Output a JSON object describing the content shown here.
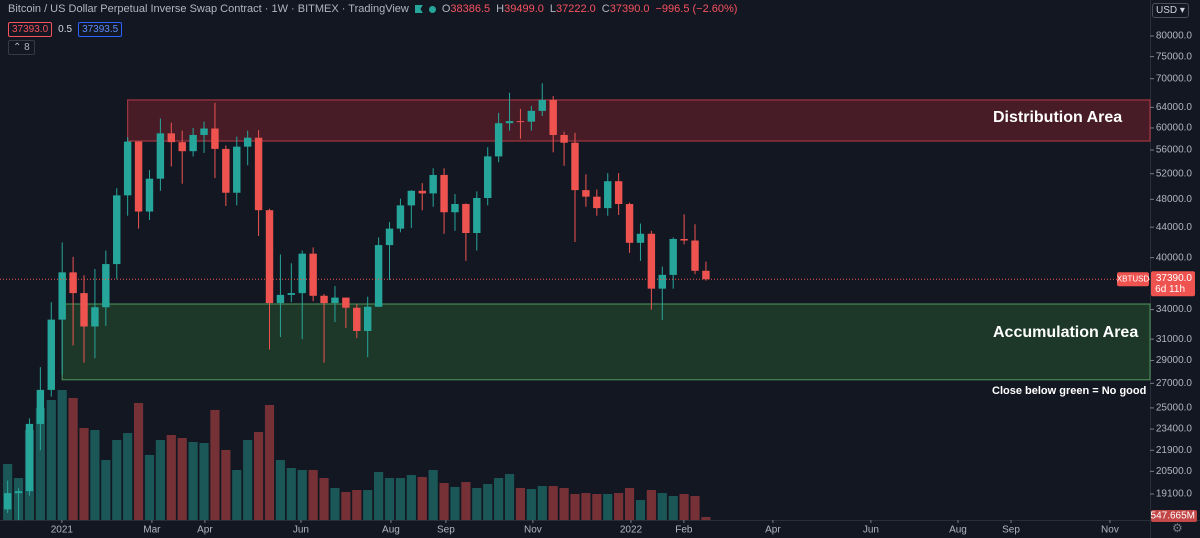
{
  "header": {
    "title": "Bitcoin / US Dollar Perpetual Inverse Swap Contract · 1W · BITMEX · TradingView",
    "ohlc": [
      {
        "key": "O",
        "value": "38386.5"
      },
      {
        "key": "H",
        "value": "39499.0"
      },
      {
        "key": "L",
        "value": "37222.0"
      },
      {
        "key": "C",
        "value": "37390.0"
      }
    ],
    "change": "−996.5 (−2.60%)",
    "sell": "37393.0",
    "spread": "0.5",
    "buy": "37393.5",
    "indicators": "8",
    "currency": "USD"
  },
  "chart_data": {
    "type": "candlestick",
    "categories": [
      null,
      null,
      null,
      null,
      null,
      null,
      null,
      null,
      null,
      null,
      null,
      null,
      null,
      null,
      null,
      null,
      null,
      null,
      null,
      null,
      null,
      null,
      null,
      null,
      null,
      null,
      null,
      null,
      null,
      null,
      null,
      null,
      null,
      null,
      null,
      null,
      null,
      null,
      null,
      null,
      null,
      null,
      null,
      null,
      null,
      null,
      null,
      null,
      null,
      null,
      null,
      null,
      null,
      null,
      null,
      null,
      null,
      null,
      null,
      null,
      null,
      null,
      null,
      null,
      null
    ],
    "open": [
      18200,
      19150,
      19270,
      23780,
      26450,
      32950,
      38200,
      35800,
      32250,
      34250,
      39200,
      48600,
      57500,
      46200,
      51200,
      59000,
      57400,
      55800,
      58700,
      59900,
      56200,
      49000,
      56600,
      58200,
      46400,
      34700,
      35600,
      35800,
      40500,
      35500,
      34700,
      35300,
      34200,
      31800,
      34300,
      41600,
      43800,
      47100,
      49300,
      48900,
      51800,
      46100,
      47300,
      43200,
      48200,
      54900,
      60900,
      61300,
      61200,
      63300,
      65500,
      58700,
      57300,
      49400,
      48400,
      46700,
      50800,
      47300,
      41900,
      43100,
      36300,
      37900,
      42400,
      42200,
      38386.5
    ],
    "high": [
      19920,
      19450,
      24200,
      28400,
      34800,
      41950,
      40100,
      37850,
      38600,
      40900,
      49700,
      58300,
      57500,
      52600,
      61800,
      61000,
      59500,
      60000,
      61200,
      64900,
      56800,
      58400,
      59500,
      59600,
      46600,
      40400,
      39300,
      40900,
      41300,
      35700,
      36600,
      35300,
      34600,
      35400,
      42600,
      44700,
      48100,
      49400,
      50500,
      52900,
      52900,
      48800,
      47400,
      49200,
      56500,
      62900,
      67000,
      63700,
      64300,
      69000,
      66300,
      59300,
      59100,
      51900,
      49500,
      52100,
      52100,
      47500,
      44500,
      43500,
      38900,
      42600,
      45800,
      44400,
      39499
    ],
    "low": [
      18000,
      17600,
      19000,
      21900,
      25900,
      27700,
      30400,
      28800,
      29200,
      32300,
      37400,
      45600,
      43800,
      45000,
      49300,
      53200,
      50400,
      54900,
      55500,
      51300,
      47000,
      47100,
      53400,
      42800,
      30000,
      31200,
      34800,
      31000,
      34900,
      28800,
      32700,
      32100,
      31100,
      29300,
      34300,
      37300,
      43300,
      43900,
      46400,
      46900,
      43100,
      43500,
      39600,
      40900,
      47100,
      53900,
      59500,
      58000,
      59500,
      62300,
      55600,
      53300,
      42000,
      46900,
      45600,
      45600,
      45700,
      40600,
      39600,
      34000,
      32900,
      36300,
      41700,
      38000,
      37222
    ],
    "close": [
      19150,
      19270,
      23780,
      26450,
      32950,
      38200,
      35800,
      32250,
      34250,
      39200,
      48600,
      57500,
      46200,
      51200,
      59000,
      57400,
      55800,
      58700,
      59900,
      56200,
      49000,
      56600,
      58200,
      46400,
      34700,
      35600,
      35800,
      40500,
      35500,
      34700,
      35300,
      34200,
      31800,
      34300,
      41600,
      43800,
      47100,
      49300,
      48900,
      51800,
      46100,
      47300,
      43200,
      48200,
      54900,
      60900,
      61300,
      61200,
      63300,
      65500,
      58700,
      57300,
      49400,
      48400,
      46700,
      50800,
      47300,
      41900,
      43100,
      36300,
      37900,
      42400,
      42200,
      38386.5,
      37390
    ],
    "up_color": "#26a69a",
    "down_color": "#ef5350",
    "log_scale": true,
    "ylim": [
      17608,
      89530
    ],
    "yticks": [
      {
        "value": 80000,
        "label": "80000.0"
      },
      {
        "value": 75000,
        "label": "75000.0"
      },
      {
        "value": 70000,
        "label": "70000.0"
      },
      {
        "value": 64000,
        "label": "64000.0"
      },
      {
        "value": 60000,
        "label": "60000.0"
      },
      {
        "value": 56000,
        "label": "56000.0"
      },
      {
        "value": 52000,
        "label": "52000.0"
      },
      {
        "value": 48000,
        "label": "48000.0"
      },
      {
        "value": 44000,
        "label": "44000.0"
      },
      {
        "value": 40000,
        "label": "40000.0"
      },
      {
        "value": 34000,
        "label": "34000.0"
      },
      {
        "value": 31000,
        "label": "31000.0"
      },
      {
        "value": 29000,
        "label": "29000.0"
      },
      {
        "value": 27000,
        "label": "27000.0"
      },
      {
        "value": 25000,
        "label": "25000.0"
      },
      {
        "value": 23400,
        "label": "23400.0"
      },
      {
        "value": 21900,
        "label": "21900.0"
      },
      {
        "value": 20500,
        "label": "20500.0"
      },
      {
        "value": 19100,
        "label": "19100.0"
      }
    ],
    "xlim": [
      -0.7,
      104.7
    ],
    "xticks": [
      {
        "value": 4.97,
        "label": "2021"
      },
      {
        "value": 13.22,
        "label": "Mar"
      },
      {
        "value": 18.08,
        "label": "Apr"
      },
      {
        "value": 26.88,
        "label": "Jun"
      },
      {
        "value": 35.13,
        "label": "Aug"
      },
      {
        "value": 40.17,
        "label": "Sep"
      },
      {
        "value": 48.14,
        "label": "Nov"
      },
      {
        "value": 57.13,
        "label": "2022"
      },
      {
        "value": 61.98,
        "label": "Feb"
      },
      {
        "value": 70.14,
        "label": "Apr"
      },
      {
        "value": 79.12,
        "label": "Jun"
      },
      {
        "value": 87.1,
        "label": "Aug"
      },
      {
        "value": 91.96,
        "label": "Sep"
      },
      {
        "value": 101.03,
        "label": "Nov"
      }
    ],
    "grid": false,
    "volume": {
      "ylim": [
        0,
        95000
      ],
      "values": [
        10230,
        7670,
        16440,
        20460,
        21920,
        23750,
        22290,
        16810,
        16440,
        10960,
        14620,
        15890,
        21380,
        11880,
        14620,
        15530,
        14980,
        14250,
        14070,
        20100,
        12790,
        9140,
        14620,
        16080,
        21010,
        10960,
        9500,
        9140,
        9140,
        7670,
        5850,
        5120,
        5480,
        5480,
        8770,
        7670,
        7670,
        8220,
        7860,
        9140,
        6760,
        6030,
        6940,
        5850,
        6580,
        7670,
        8400,
        5850,
        5660,
        6210,
        6210,
        5850,
        4750,
        4930,
        4750,
        4750,
        4930,
        5850,
        3650,
        5480,
        4930,
        4380,
        4750,
        4380,
        547.665
      ],
      "last_label": "547.665M"
    },
    "last_price": {
      "value": 37390,
      "label": "37390.0",
      "symbol": "XBTUSD",
      "countdown": "6d 11h"
    },
    "zones": [
      {
        "label": "Distribution Area",
        "top": 65500,
        "bottom": 57600,
        "start": 11,
        "fill": "rgba(178,40,51,0.33)",
        "stroke": "#b83a45"
      },
      {
        "label": "Accumulation Area",
        "top": 34600,
        "bottom": 27300,
        "start": 5,
        "fill": "rgba(56,142,60,0.28)",
        "stroke": "#4f9a5a"
      }
    ],
    "annotation": "Close below green = No good"
  }
}
